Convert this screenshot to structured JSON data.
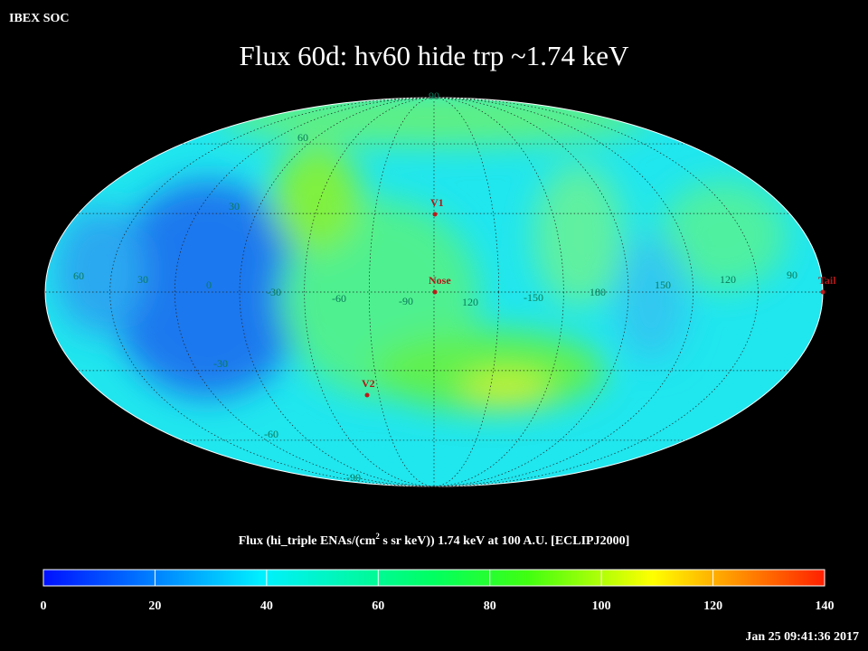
{
  "header": {
    "org": "IBEX SOC",
    "title": "Flux   60d: hv60 hide trp ~1.74 keV"
  },
  "map": {
    "latitude_labels": [
      "90",
      "60",
      "30",
      "-30",
      "-60",
      "-90"
    ],
    "longitude_labels": [
      "60",
      "30",
      "0",
      "-30",
      "-60",
      "-90",
      "120",
      "-150",
      "180",
      "150",
      "120",
      "90"
    ],
    "markers": [
      "V1",
      "Nose",
      "V2",
      "Tail"
    ]
  },
  "colorbar": {
    "title_parts": [
      "Flux (hi_triple ENAs/(cm",
      "2",
      " s sr keV))  1.74 keV at 100 A.U. [ECLIPJ2000]"
    ],
    "ticks": [
      0,
      20,
      40,
      60,
      80,
      100,
      120,
      140
    ]
  },
  "footer": {
    "timestamp": "Jan 25 09:41:36 2017"
  }
}
